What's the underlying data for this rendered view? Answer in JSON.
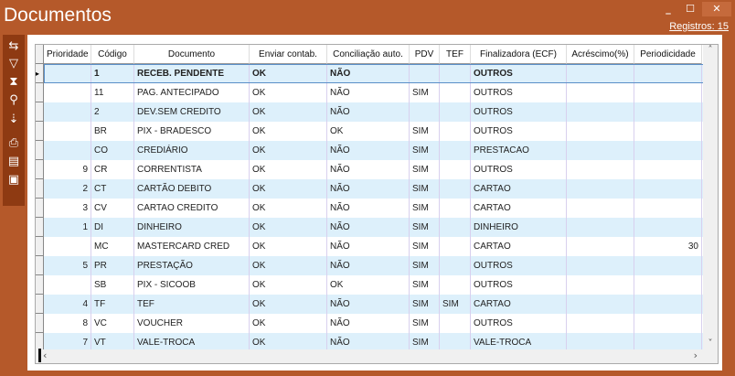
{
  "window": {
    "title": "Documentos",
    "records": "Registros: 15",
    "minimize": "_",
    "maximize": "☐",
    "close": "✕"
  },
  "toolbar": [
    {
      "icon": "refresh-icon",
      "glyph": "⇆"
    },
    {
      "icon": "filter-icon",
      "glyph": "▽"
    },
    {
      "icon": "clear-filter-icon",
      "glyph": "⧗"
    },
    {
      "icon": "search-icon",
      "glyph": "⚲"
    },
    {
      "icon": "sort-icon",
      "glyph": "⇣"
    },
    {
      "icon": "print-icon",
      "glyph": "⎙"
    },
    {
      "icon": "report-icon",
      "glyph": "▤"
    },
    {
      "icon": "save-icon",
      "glyph": "▣"
    }
  ],
  "columns": [
    "Prioridade",
    "Código",
    "Documento",
    "Enviar contab.",
    "Conciliação auto.",
    "PDV",
    "TEF",
    "Finalizadora (ECF)",
    "Acréscimo(%)",
    "Periodicidade"
  ],
  "rows": [
    [
      "",
      "1",
      "RECEB. PENDENTE",
      "OK",
      "NÃO",
      "",
      "",
      "OUTROS",
      "",
      ""
    ],
    [
      "",
      "11",
      "PAG. ANTECIPADO",
      "OK",
      "NÃO",
      "SIM",
      "",
      "OUTROS",
      "",
      ""
    ],
    [
      "",
      "2",
      "DEV.SEM CREDITO",
      "OK",
      "NÃO",
      "",
      "",
      "OUTROS",
      "",
      ""
    ],
    [
      "",
      "BR",
      "PIX - BRADESCO",
      "OK",
      "OK",
      "SIM",
      "",
      "OUTROS",
      "",
      ""
    ],
    [
      "",
      "CO",
      "CREDIÁRIO",
      "OK",
      "NÃO",
      "SIM",
      "",
      "PRESTACAO",
      "",
      ""
    ],
    [
      "9",
      "CR",
      "CORRENTISTA",
      "OK",
      "NÃO",
      "SIM",
      "",
      "OUTROS",
      "",
      ""
    ],
    [
      "2",
      "CT",
      "CARTÃO DEBITO",
      "OK",
      "NÃO",
      "SIM",
      "",
      "CARTAO",
      "",
      ""
    ],
    [
      "3",
      "CV",
      "CARTAO CREDITO",
      "OK",
      "NÃO",
      "SIM",
      "",
      "CARTAO",
      "",
      ""
    ],
    [
      "1",
      "DI",
      "DINHEIRO",
      "OK",
      "NÃO",
      "SIM",
      "",
      "DINHEIRO",
      "",
      ""
    ],
    [
      "",
      "MC",
      "MASTERCARD CRED",
      "OK",
      "NÃO",
      "SIM",
      "",
      "CARTAO",
      "",
      "30"
    ],
    [
      "5",
      "PR",
      "PRESTAÇÃO",
      "OK",
      "NÃO",
      "SIM",
      "",
      "OUTROS",
      "",
      ""
    ],
    [
      "",
      "SB",
      "PIX - SICOOB",
      "OK",
      "OK",
      "SIM",
      "",
      "OUTROS",
      "",
      ""
    ],
    [
      "4",
      "TF",
      "TEF",
      "OK",
      "NÃO",
      "SIM",
      "SIM",
      "CARTAO",
      "",
      ""
    ],
    [
      "8",
      "VC",
      "VOUCHER",
      "OK",
      "NÃO",
      "SIM",
      "",
      "OUTROS",
      "",
      ""
    ],
    [
      "7",
      "VT",
      "VALE-TROCA",
      "OK",
      "NÃO",
      "SIM",
      "",
      "VALE-TROCA",
      "",
      ""
    ]
  ],
  "selected_row": 0
}
